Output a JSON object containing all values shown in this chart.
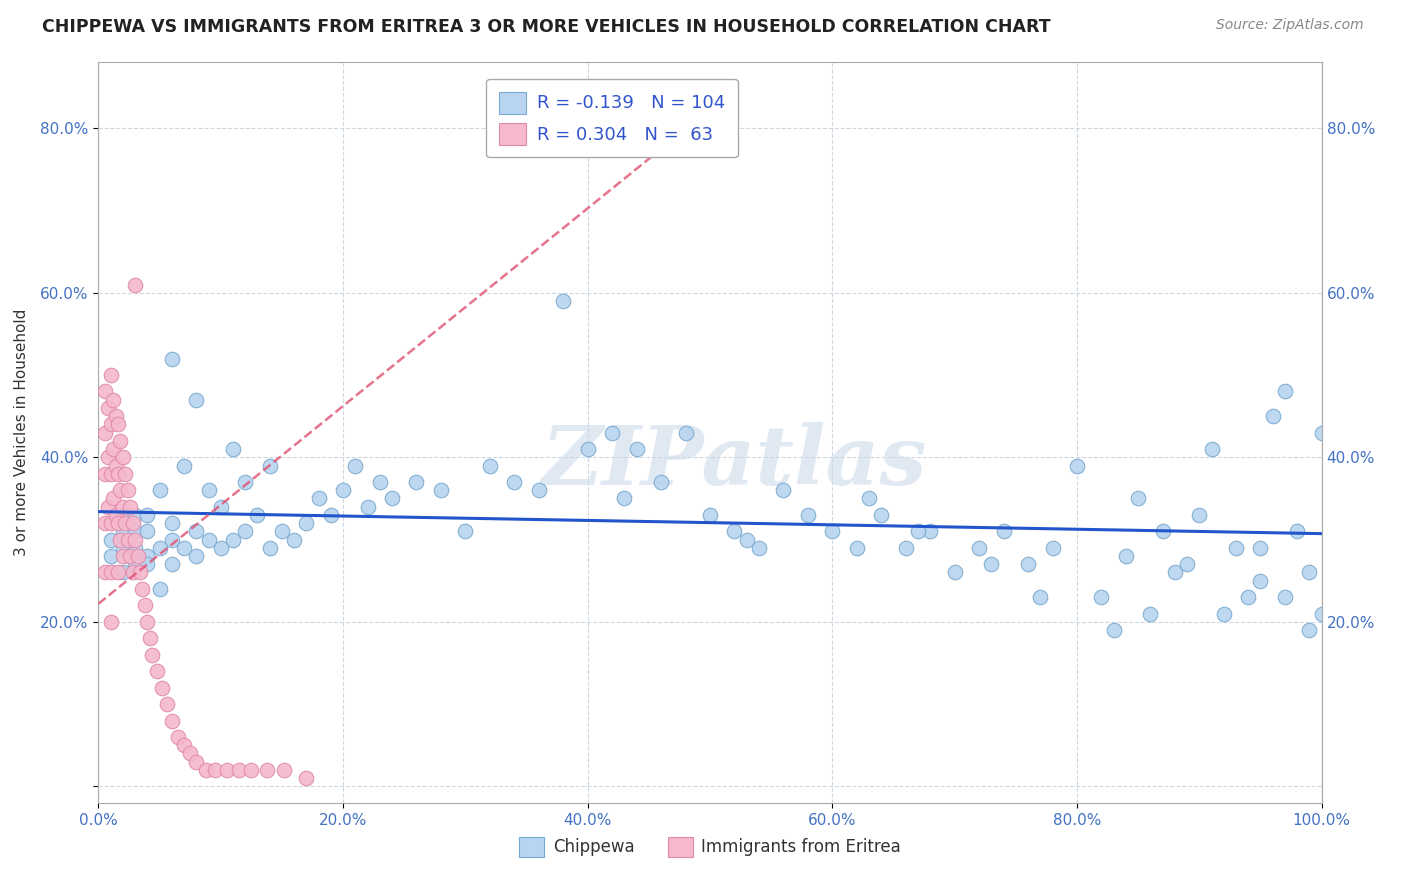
{
  "title": "CHIPPEWA VS IMMIGRANTS FROM ERITREA 3 OR MORE VEHICLES IN HOUSEHOLD CORRELATION CHART",
  "source": "Source: ZipAtlas.com",
  "ylabel": "3 or more Vehicles in Household",
  "xlim": [
    0.0,
    1.0
  ],
  "ylim": [
    -0.02,
    0.88
  ],
  "yticks": [
    0.0,
    0.2,
    0.4,
    0.6,
    0.8
  ],
  "xticks": [
    0.0,
    0.2,
    0.4,
    0.6,
    0.8,
    1.0
  ],
  "xtick_labels": [
    "0.0%",
    "20.0%",
    "40.0%",
    "60.0%",
    "80.0%",
    "100.0%"
  ],
  "ytick_labels": [
    "",
    "20.0%",
    "40.0%",
    "60.0%",
    "80.0%"
  ],
  "right_ytick_labels": [
    "20.0%",
    "40.0%",
    "60.0%",
    "80.0%"
  ],
  "chippewa_color": "#b8d4f0",
  "eritrea_color": "#f5b8cc",
  "chippewa_edge": "#7aaad0",
  "eritrea_edge": "#e08aaa",
  "trend_chippewa_color": "#2255cc",
  "trend_eritrea_color": "#e05070",
  "R_chippewa": -0.139,
  "N_chippewa": 104,
  "R_eritrea": 0.304,
  "N_eritrea": 63,
  "watermark": "ZIPatlas",
  "watermark_color": "#c8d8e8",
  "background_color": "#ffffff",
  "grid_color": "#c8d4e0",
  "chippewa_x": [
    0.01,
    0.01,
    0.02,
    0.02,
    0.02,
    0.02,
    0.03,
    0.03,
    0.03,
    0.03,
    0.04,
    0.04,
    0.04,
    0.04,
    0.05,
    0.05,
    0.05,
    0.06,
    0.06,
    0.06,
    0.06,
    0.07,
    0.07,
    0.08,
    0.08,
    0.08,
    0.09,
    0.09,
    0.1,
    0.1,
    0.11,
    0.11,
    0.12,
    0.12,
    0.13,
    0.14,
    0.14,
    0.15,
    0.16,
    0.17,
    0.18,
    0.19,
    0.2,
    0.21,
    0.22,
    0.23,
    0.24,
    0.26,
    0.28,
    0.3,
    0.32,
    0.34,
    0.36,
    0.38,
    0.4,
    0.42,
    0.44,
    0.46,
    0.48,
    0.5,
    0.52,
    0.54,
    0.56,
    0.58,
    0.6,
    0.62,
    0.64,
    0.66,
    0.68,
    0.7,
    0.72,
    0.74,
    0.76,
    0.78,
    0.8,
    0.82,
    0.84,
    0.86,
    0.88,
    0.9,
    0.92,
    0.93,
    0.94,
    0.95,
    0.96,
    0.97,
    0.98,
    0.99,
    1.0,
    0.91,
    0.85,
    0.87,
    0.89,
    0.95,
    0.97,
    0.99,
    1.0,
    0.63,
    0.67,
    0.73,
    0.77,
    0.83,
    0.53,
    0.43
  ],
  "chippewa_y": [
    0.3,
    0.28,
    0.31,
    0.29,
    0.33,
    0.26,
    0.29,
    0.31,
    0.27,
    0.33,
    0.28,
    0.31,
    0.27,
    0.33,
    0.29,
    0.36,
    0.24,
    0.3,
    0.27,
    0.32,
    0.52,
    0.29,
    0.39,
    0.28,
    0.31,
    0.47,
    0.3,
    0.36,
    0.29,
    0.34,
    0.3,
    0.41,
    0.31,
    0.37,
    0.33,
    0.29,
    0.39,
    0.31,
    0.3,
    0.32,
    0.35,
    0.33,
    0.36,
    0.39,
    0.34,
    0.37,
    0.35,
    0.37,
    0.36,
    0.31,
    0.39,
    0.37,
    0.36,
    0.59,
    0.41,
    0.43,
    0.41,
    0.37,
    0.43,
    0.33,
    0.31,
    0.29,
    0.36,
    0.33,
    0.31,
    0.29,
    0.33,
    0.29,
    0.31,
    0.26,
    0.29,
    0.31,
    0.27,
    0.29,
    0.39,
    0.23,
    0.28,
    0.21,
    0.26,
    0.33,
    0.21,
    0.29,
    0.23,
    0.29,
    0.45,
    0.48,
    0.31,
    0.26,
    0.43,
    0.41,
    0.35,
    0.31,
    0.27,
    0.25,
    0.23,
    0.19,
    0.21,
    0.35,
    0.31,
    0.27,
    0.23,
    0.19,
    0.3,
    0.35
  ],
  "eritrea_x": [
    0.005,
    0.005,
    0.005,
    0.005,
    0.005,
    0.008,
    0.008,
    0.008,
    0.01,
    0.01,
    0.01,
    0.01,
    0.01,
    0.01,
    0.012,
    0.012,
    0.012,
    0.014,
    0.014,
    0.014,
    0.016,
    0.016,
    0.016,
    0.016,
    0.018,
    0.018,
    0.018,
    0.02,
    0.02,
    0.02,
    0.022,
    0.022,
    0.024,
    0.024,
    0.026,
    0.026,
    0.028,
    0.028,
    0.03,
    0.03,
    0.032,
    0.034,
    0.036,
    0.038,
    0.04,
    0.042,
    0.044,
    0.048,
    0.052,
    0.056,
    0.06,
    0.065,
    0.07,
    0.075,
    0.08,
    0.088,
    0.095,
    0.105,
    0.115,
    0.125,
    0.138,
    0.152,
    0.17
  ],
  "eritrea_y": [
    0.48,
    0.43,
    0.38,
    0.32,
    0.26,
    0.46,
    0.4,
    0.34,
    0.5,
    0.44,
    0.38,
    0.32,
    0.26,
    0.2,
    0.47,
    0.41,
    0.35,
    0.45,
    0.39,
    0.33,
    0.44,
    0.38,
    0.32,
    0.26,
    0.42,
    0.36,
    0.3,
    0.4,
    0.34,
    0.28,
    0.38,
    0.32,
    0.36,
    0.3,
    0.34,
    0.28,
    0.32,
    0.26,
    0.61,
    0.3,
    0.28,
    0.26,
    0.24,
    0.22,
    0.2,
    0.18,
    0.16,
    0.14,
    0.12,
    0.1,
    0.08,
    0.06,
    0.05,
    0.04,
    0.03,
    0.02,
    0.02,
    0.02,
    0.02,
    0.02,
    0.02,
    0.02,
    0.01
  ]
}
